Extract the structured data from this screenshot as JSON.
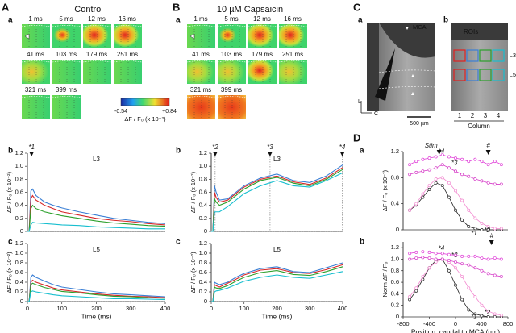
{
  "figure": {
    "A": {
      "letter": "A",
      "title": "Control",
      "sub": [
        "a",
        "b",
        "c"
      ],
      "frames": [
        "1 ms",
        "5 ms",
        "12 ms",
        "16 ms",
        "41 ms",
        "103 ms",
        "179 ms",
        "251 ms",
        "321 ms",
        "399 ms"
      ],
      "colorbar": {
        "min": "-0.54",
        "max": "+0.84",
        "label": "ΔF / F₀ (x 10⁻²)"
      }
    },
    "B": {
      "letter": "B",
      "title": "10 µM Capsaicin",
      "sub": [
        "a",
        "b",
        "c"
      ],
      "frames": [
        "1 ms",
        "5 ms",
        "12 ms",
        "16 ms",
        "41 ms",
        "103 ms",
        "179 ms",
        "251 ms",
        "321 ms",
        "399 ms"
      ]
    },
    "C": {
      "letter": "C",
      "sub": [
        "a",
        "b"
      ],
      "mca": "MCA",
      "axis_l": "L",
      "axis_c": "C",
      "scale": "500 µm",
      "rois": "ROIs",
      "l3": "L3",
      "l5": "L5",
      "columns": [
        "1",
        "2",
        "3",
        "4"
      ],
      "column_label": "Column"
    },
    "D": {
      "letter": "D",
      "sub": [
        "a",
        "b"
      ]
    }
  },
  "chart_data": [
    {
      "type": "line",
      "label": "L3",
      "ylabel": "ΔF / F₀ (x 10⁻²)",
      "xlim": [
        0,
        400
      ],
      "ylim": [
        0,
        1.2
      ],
      "yticks": [
        0,
        0.2,
        0.4,
        0.6,
        0.8,
        {
          "value": 1,
          "label": "1.0"
        },
        1.2
      ],
      "x": [
        0,
        5,
        10,
        15,
        25,
        50,
        75,
        100,
        150,
        200,
        250,
        300,
        350,
        400
      ],
      "series": [
        {
          "color": "#3a7fd5",
          "values": [
            0,
            0,
            0.62,
            0.65,
            0.55,
            0.45,
            0.4,
            0.36,
            0.3,
            0.25,
            0.2,
            0.17,
            0.14,
            0.12
          ]
        },
        {
          "color": "#d62728",
          "values": [
            0,
            0,
            0.5,
            0.55,
            0.48,
            0.4,
            0.35,
            0.3,
            0.25,
            0.2,
            0.17,
            0.15,
            0.12,
            0.1
          ]
        },
        {
          "color": "#2ca02c",
          "values": [
            0,
            0,
            0.35,
            0.4,
            0.35,
            0.3,
            0.27,
            0.24,
            0.2,
            0.16,
            0.13,
            0.11,
            0.09,
            0.08
          ]
        },
        {
          "color": "#17becf",
          "values": [
            0,
            0,
            0.1,
            0.14,
            0.13,
            0.12,
            0.11,
            0.1,
            0.09,
            0.07,
            0.06,
            0.05,
            0.04,
            0.04
          ]
        }
      ],
      "annotations": [
        {
          "text": "*1",
          "x": 12
        }
      ]
    },
    {
      "type": "line",
      "label": "L5",
      "ylabel": "ΔF / F₀ (x 10⁻²)",
      "xlabel": "Time (ms)",
      "xlim": [
        0,
        400
      ],
      "ylim": [
        0,
        1.2
      ],
      "yticks": [
        0,
        0.2,
        0.4,
        0.6,
        0.8,
        {
          "value": 1,
          "label": "1.0"
        },
        1.2
      ],
      "xticks": [
        0,
        100,
        200,
        300,
        400
      ],
      "x": [
        0,
        5,
        10,
        15,
        25,
        50,
        75,
        100,
        150,
        200,
        250,
        300,
        350,
        400
      ],
      "series": [
        {
          "color": "#3a7fd5",
          "values": [
            0,
            0,
            0.5,
            0.55,
            0.5,
            0.42,
            0.35,
            0.3,
            0.25,
            0.2,
            0.16,
            0.14,
            0.12,
            0.1
          ]
        },
        {
          "color": "#d62728",
          "values": [
            0,
            0,
            0.4,
            0.44,
            0.4,
            0.34,
            0.28,
            0.24,
            0.2,
            0.16,
            0.13,
            0.11,
            0.1,
            0.08
          ]
        },
        {
          "color": "#2ca02c",
          "values": [
            0,
            0,
            0.35,
            0.38,
            0.35,
            0.29,
            0.25,
            0.21,
            0.18,
            0.14,
            0.11,
            0.1,
            0.08,
            0.07
          ]
        },
        {
          "color": "#17becf",
          "values": [
            0,
            0,
            0.2,
            0.22,
            0.2,
            0.17,
            0.14,
            0.12,
            0.1,
            0.08,
            0.06,
            0.06,
            0.05,
            0.04
          ]
        }
      ]
    },
    {
      "type": "line",
      "label": "L3",
      "ylabel": "ΔF / F₀ (x 10⁻²)",
      "xlim": [
        0,
        400
      ],
      "ylim": [
        0,
        1.2
      ],
      "yticks": [
        0,
        0.2,
        0.4,
        0.6,
        0.8,
        {
          "value": 1,
          "label": "1.0"
        },
        1.2
      ],
      "x": [
        0,
        5,
        10,
        15,
        25,
        50,
        75,
        100,
        150,
        200,
        250,
        300,
        350,
        400
      ],
      "series": [
        {
          "color": "#3a7fd5",
          "values": [
            0,
            0,
            0.7,
            0.6,
            0.48,
            0.5,
            0.6,
            0.7,
            0.82,
            0.88,
            0.78,
            0.75,
            0.85,
            1.02
          ]
        },
        {
          "color": "#d62728",
          "values": [
            0,
            0,
            0.6,
            0.52,
            0.45,
            0.48,
            0.58,
            0.68,
            0.8,
            0.85,
            0.76,
            0.72,
            0.82,
            0.98
          ]
        },
        {
          "color": "#2ca02c",
          "values": [
            0,
            0,
            0.5,
            0.45,
            0.4,
            0.45,
            0.55,
            0.65,
            0.78,
            0.83,
            0.74,
            0.7,
            0.8,
            0.95
          ]
        },
        {
          "color": "#17becf",
          "values": [
            0,
            0,
            0.3,
            0.3,
            0.3,
            0.38,
            0.48,
            0.58,
            0.7,
            0.78,
            0.7,
            0.68,
            0.78,
            0.9
          ]
        }
      ],
      "annotations": [
        {
          "text": "*2",
          "x": 12
        },
        {
          "text": "*3",
          "x": 179
        },
        {
          "text": "*4",
          "x": 399
        }
      ]
    },
    {
      "type": "line",
      "label": "L5",
      "ylabel": "ΔF / F₀ (x 10⁻²)",
      "xlabel": "Time (ms)",
      "xlim": [
        0,
        400
      ],
      "ylim": [
        0,
        1.2
      ],
      "yticks": [
        0,
        0.2,
        0.4,
        0.6,
        0.8,
        {
          "value": 1,
          "label": "1.0"
        },
        1.2
      ],
      "xticks": [
        0,
        100,
        200,
        300,
        400
      ],
      "x": [
        0,
        5,
        10,
        15,
        25,
        50,
        75,
        100,
        150,
        200,
        250,
        300,
        350,
        400
      ],
      "series": [
        {
          "color": "#3a7fd5",
          "values": [
            0,
            0,
            0.4,
            0.38,
            0.35,
            0.4,
            0.5,
            0.58,
            0.68,
            0.72,
            0.62,
            0.6,
            0.7,
            0.8
          ]
        },
        {
          "color": "#d62728",
          "values": [
            0,
            0,
            0.35,
            0.33,
            0.3,
            0.38,
            0.46,
            0.55,
            0.65,
            0.68,
            0.6,
            0.58,
            0.66,
            0.76
          ]
        },
        {
          "color": "#2ca02c",
          "values": [
            0,
            0,
            0.3,
            0.28,
            0.27,
            0.33,
            0.42,
            0.5,
            0.6,
            0.64,
            0.56,
            0.54,
            0.62,
            0.72
          ]
        },
        {
          "color": "#17becf",
          "values": [
            0,
            0,
            0.2,
            0.22,
            0.23,
            0.28,
            0.35,
            0.42,
            0.5,
            0.55,
            0.5,
            0.48,
            0.55,
            0.62
          ]
        }
      ]
    },
    {
      "type": "line",
      "ylabel": "ΔF / F₀ (x 10⁻²)",
      "xlim": [
        -800,
        800
      ],
      "ylim": [
        0,
        1.2
      ],
      "yticks": [
        0,
        0.4,
        0.8,
        1.2
      ],
      "markers": true,
      "x": [
        -700,
        -600,
        -500,
        -400,
        -300,
        -200,
        -100,
        0,
        100,
        200,
        300,
        400,
        500,
        600,
        700
      ],
      "series": [
        {
          "name": "*1",
          "color": "#222222",
          "values": [
            0.3,
            0.38,
            0.5,
            0.62,
            0.72,
            0.68,
            0.5,
            0.3,
            0.15,
            0.05,
            0.02,
            0,
            0,
            0,
            0
          ]
        },
        {
          "name": "*2",
          "color": "#f28ad0",
          "values": [
            0.3,
            0.4,
            0.55,
            0.68,
            0.78,
            0.8,
            0.72,
            0.6,
            0.45,
            0.3,
            0.18,
            0.1,
            0.05,
            0.02,
            0.02
          ]
        },
        {
          "name": "*3",
          "color": "#d63cc8",
          "values": [
            0.85,
            0.88,
            0.9,
            0.92,
            0.95,
            1,
            0.95,
            0.9,
            0.85,
            0.82,
            0.78,
            0.75,
            0.72,
            0.7,
            0.7
          ]
        },
        {
          "name": "*4",
          "color": "#e040d8",
          "values": [
            1,
            1.05,
            1.08,
            1.1,
            1.12,
            1.15,
            1.12,
            1.1,
            1.08,
            1.05,
            1.08,
            1.05,
            1,
            1.05,
            1
          ]
        }
      ],
      "annotations": [
        {
          "text": "Stim",
          "x": -250
        },
        {
          "text": "#",
          "x": 500
        }
      ]
    },
    {
      "type": "line",
      "ylabel": "Norm ΔF / F₀",
      "xlabel": "Position, caudal to MCA (µm)",
      "xlim": [
        -800,
        800
      ],
      "ylim": [
        0,
        1.3
      ],
      "yticks": [
        0,
        0.2,
        0.4,
        0.6,
        0.8,
        {
          "value": 1,
          "label": "1.0"
        },
        1.2
      ],
      "xticks": [
        -800,
        -400,
        0,
        400,
        800
      ],
      "markers": true,
      "x": [
        -700,
        -600,
        -500,
        -400,
        -300,
        -200,
        -100,
        0,
        100,
        200,
        300,
        400,
        500,
        600,
        700
      ],
      "series": [
        {
          "name": "*1",
          "color": "#222222",
          "values": [
            0.3,
            0.45,
            0.65,
            0.85,
            0.98,
            1,
            0.8,
            0.55,
            0.3,
            0.12,
            0.05,
            0.02,
            0,
            0,
            0
          ]
        },
        {
          "name": "*2",
          "color": "#f28ad0",
          "values": [
            0.35,
            0.5,
            0.7,
            0.85,
            0.95,
            1,
            0.95,
            0.85,
            0.7,
            0.5,
            0.35,
            0.2,
            0.1,
            0.05,
            0.03
          ]
        },
        {
          "name": "*3",
          "color": "#d63cc8",
          "values": [
            1,
            1.02,
            1.03,
            1.02,
            1,
            1,
            0.98,
            0.95,
            0.92,
            0.9,
            0.85,
            0.8,
            0.75,
            0.72,
            0.7
          ]
        },
        {
          "name": "*4",
          "color": "#e040d8",
          "values": [
            1.1,
            1.12,
            1.13,
            1.12,
            1.1,
            1.1,
            1.08,
            1.07,
            1.05,
            1.05,
            1.05,
            1.02,
            1,
            1.02,
            1
          ]
        }
      ],
      "annotations": [
        {
          "text": "#",
          "x": 550
        }
      ]
    }
  ]
}
